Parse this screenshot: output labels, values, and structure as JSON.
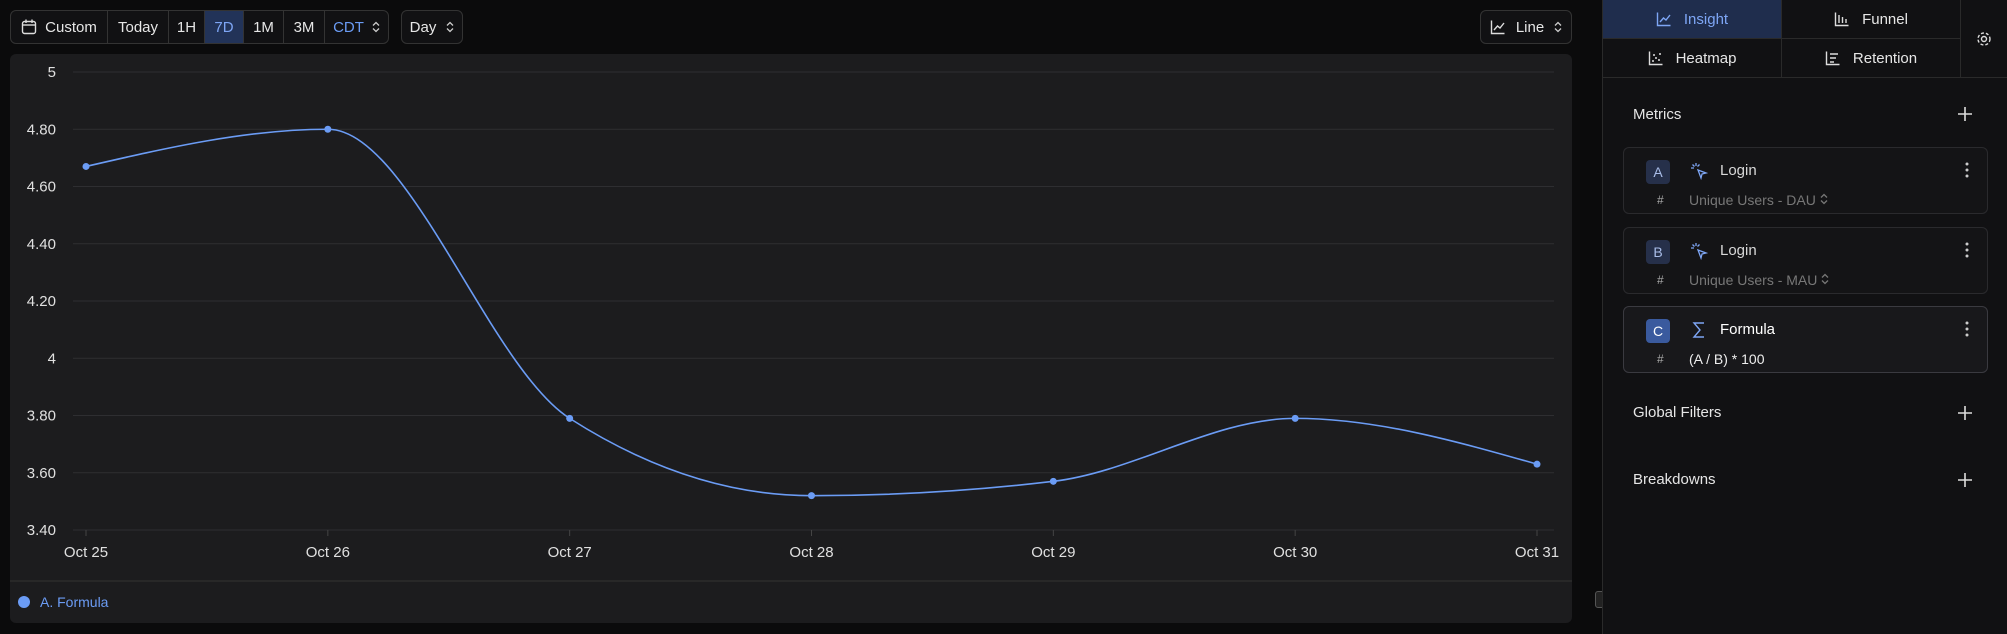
{
  "toolbar": {
    "range_buttons": [
      "Custom",
      "Today",
      "1H",
      "7D",
      "1M",
      "3M"
    ],
    "timezone": "CDT",
    "interval": "Day",
    "chart_type": "Line"
  },
  "sidebar": {
    "tabs": [
      "Insight",
      "Funnel",
      "Heatmap",
      "Retention"
    ],
    "metrics_title": "Metrics",
    "metrics": [
      {
        "letter": "A",
        "event": "Login",
        "symbol": "#",
        "measure": "Unique Users - DAU"
      },
      {
        "letter": "B",
        "event": "Login",
        "symbol": "#",
        "measure": "Unique Users - MAU"
      },
      {
        "letter": "C",
        "event": "Formula",
        "symbol": "#",
        "measure": "(A / B) * 100"
      }
    ],
    "global_filters": "Global Filters",
    "breakdowns": "Breakdowns"
  },
  "chart_data": {
    "type": "line",
    "categories": [
      "Oct 25",
      "Oct 26",
      "Oct 27",
      "Oct 28",
      "Oct 29",
      "Oct 30",
      "Oct 31"
    ],
    "series": [
      {
        "name": "A. Formula",
        "color": "#6b9cf5",
        "values": [
          4.67,
          4.8,
          3.79,
          3.52,
          3.57,
          3.79,
          3.63
        ]
      }
    ],
    "ylim": [
      3.4,
      5
    ],
    "yticks": [
      {
        "value": 3.4,
        "label": "3.40"
      },
      {
        "value": 3.6,
        "label": "3.60"
      },
      {
        "value": 3.8,
        "label": "3.80"
      },
      4,
      {
        "value": 4.2,
        "label": "4.20"
      },
      {
        "value": 4.4,
        "label": "4.40"
      },
      {
        "value": 4.6,
        "label": "4.60"
      },
      {
        "value": 4.8,
        "label": "4.80"
      },
      5
    ],
    "grid": true,
    "legend": "bottom-left"
  }
}
